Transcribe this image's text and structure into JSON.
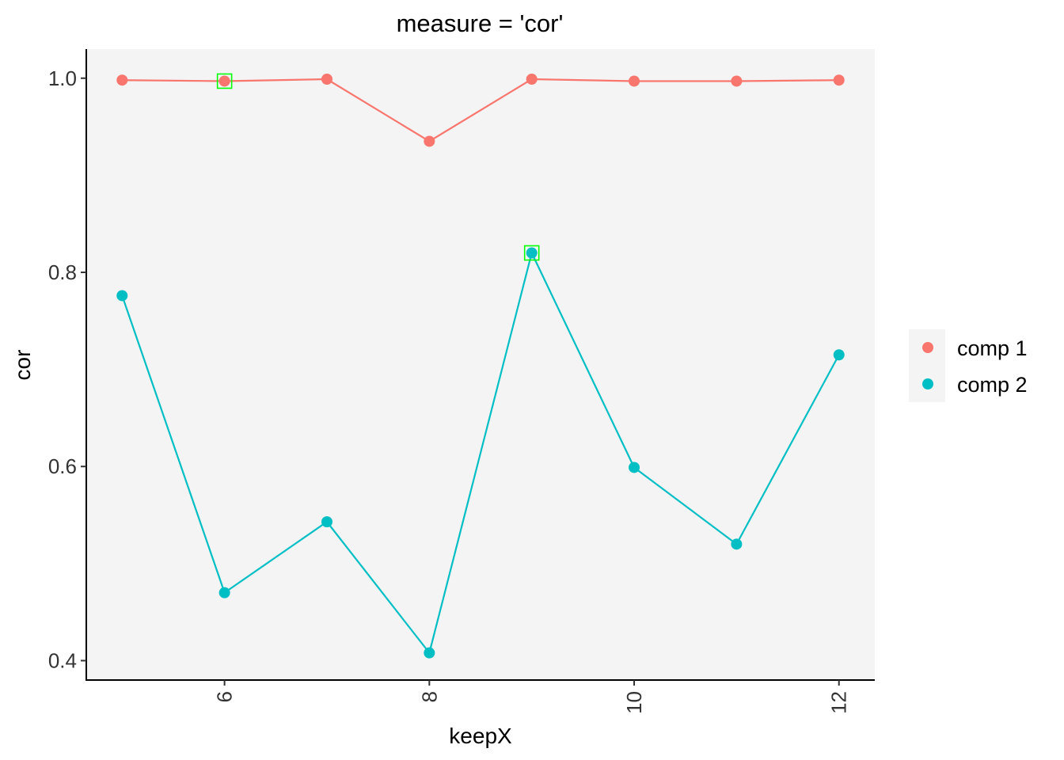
{
  "chart_data": {
    "type": "line",
    "title": "measure = 'cor'",
    "xlabel": "keepX",
    "ylabel": "cor",
    "x": [
      5,
      6,
      7,
      8,
      9,
      10,
      11,
      12
    ],
    "xlim": [
      4.65,
      12.35
    ],
    "ylim": [
      0.38,
      1.03
    ],
    "x_ticks": [
      6,
      8,
      10,
      12
    ],
    "x_tick_labels": [
      "6",
      "8",
      "10",
      "12"
    ],
    "y_ticks": [
      0.4,
      0.6,
      0.8,
      1.0
    ],
    "y_tick_labels": [
      "0.4",
      "0.6",
      "0.8",
      "1.0"
    ],
    "grid": false,
    "panel_background": "#f4f4f4",
    "legend_position": "right",
    "series": [
      {
        "name": "comp 1",
        "color": "#f8766d",
        "values": [
          0.998,
          0.997,
          0.999,
          0.935,
          0.999,
          0.997,
          0.997,
          0.998
        ],
        "highlight_x": 6
      },
      {
        "name": "comp 2",
        "color": "#00bfc4",
        "values": [
          0.776,
          0.47,
          0.543,
          0.408,
          0.82,
          0.599,
          0.52,
          0.715
        ],
        "highlight_x": 9
      }
    ],
    "highlight_color": "#00ff00"
  }
}
